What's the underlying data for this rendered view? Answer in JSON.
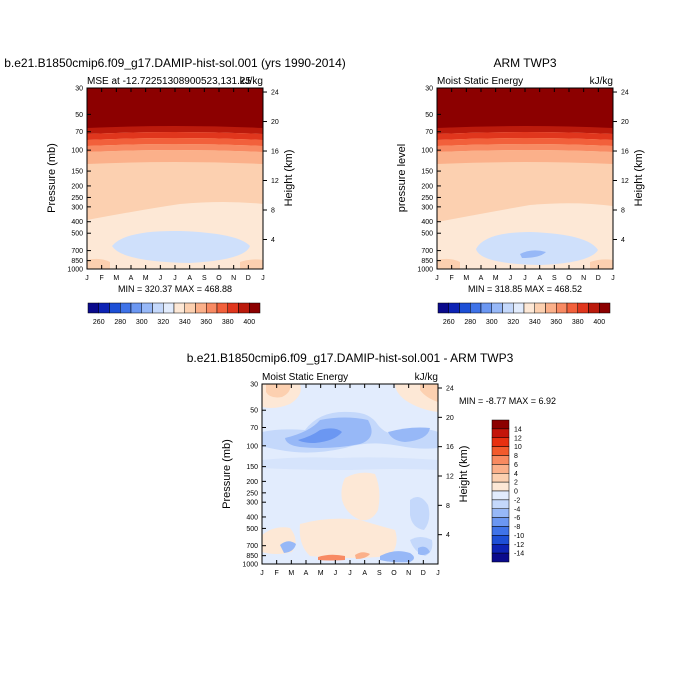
{
  "chart_data": [
    {
      "type": "heatmap",
      "title": "b.e21.B1850cmip6.f09_g17.DAMIP-hist-sol.001 (yrs 1990-2014)",
      "subtitle_left": "MSE at -12.72251308900523,131.25",
      "subtitle_right": "kJ/kg",
      "ylabel_left": "Pressure (mb)",
      "ylabel_right": "Height (km)",
      "stats": "MIN = 320.37  MAX = 468.88",
      "x_ticks": [
        "J",
        "F",
        "M",
        "A",
        "M",
        "J",
        "J",
        "A",
        "S",
        "O",
        "N",
        "D",
        "J"
      ],
      "pressure_ticks": [
        "30",
        "50",
        "70",
        "100",
        "150",
        "200",
        "250",
        "300",
        "400",
        "500",
        "700",
        "850",
        "1000"
      ],
      "height_ticks": [
        "24",
        "20",
        "16",
        "12",
        "8",
        "4"
      ],
      "min": 320.37,
      "max": 468.88
    },
    {
      "type": "heatmap",
      "title": "ARM TWP3",
      "subtitle_left": "Moist Static Energy",
      "subtitle_right": "kJ/kg",
      "ylabel_left": "pressure level",
      "ylabel_right": "Height (km)",
      "stats": "MIN = 318.85  MAX = 468.52",
      "x_ticks": [
        "J",
        "F",
        "M",
        "A",
        "M",
        "J",
        "J",
        "A",
        "S",
        "O",
        "N",
        "D",
        "J"
      ],
      "pressure_ticks": [
        "30",
        "50",
        "70",
        "100",
        "150",
        "200",
        "250",
        "300",
        "400",
        "500",
        "700",
        "850",
        "1000"
      ],
      "height_ticks": [
        "24",
        "20",
        "16",
        "12",
        "8",
        "4"
      ],
      "min": 318.85,
      "max": 468.52
    },
    {
      "type": "heatmap",
      "title": "b.e21.B1850cmip6.f09_g17.DAMIP-hist-sol.001 - ARM TWP3",
      "subtitle_left": "Moist Static Energy",
      "subtitle_right": "kJ/kg",
      "ylabel_left": "Pressure (mb)",
      "ylabel_right": "Height (km)",
      "stats": "MIN =  -8.77  MAX =   6.92",
      "x_ticks": [
        "J",
        "F",
        "M",
        "A",
        "M",
        "J",
        "J",
        "A",
        "S",
        "O",
        "N",
        "D",
        "J"
      ],
      "pressure_ticks": [
        "30",
        "50",
        "70",
        "100",
        "150",
        "200",
        "250",
        "300",
        "400",
        "500",
        "700",
        "850",
        "1000"
      ],
      "height_ticks": [
        "24",
        "20",
        "16",
        "12",
        "8",
        "4"
      ],
      "min": -8.77,
      "max": 6.92
    }
  ],
  "colorbar_top": {
    "labels": [
      "260",
      "280",
      "300",
      "320",
      "340",
      "360",
      "380",
      "400"
    ],
    "colors": [
      "#0a0a8c",
      "#0d23b5",
      "#1d4fd6",
      "#3f73e8",
      "#6b97f2",
      "#97b8f7",
      "#c4d8fb",
      "#e2ecfd",
      "#fde8d6",
      "#fcd0b0",
      "#fbb08a",
      "#f88a63",
      "#f2603b",
      "#e0361d",
      "#bb1a0c",
      "#8c0000"
    ]
  },
  "colorbar_diff": {
    "labels": [
      "14",
      "12",
      "10",
      "8",
      "6",
      "4",
      "2",
      "0",
      "-2",
      "-4",
      "-6",
      "-8",
      "-10",
      "-12",
      "-14"
    ],
    "colors": [
      "#8c0000",
      "#c4140a",
      "#e83010",
      "#f25a2c",
      "#f88a60",
      "#fbb08a",
      "#fcd0b0",
      "#fde8d6",
      "#e2ecfd",
      "#c4d8fb",
      "#97b8f7",
      "#6b97f2",
      "#3f73e8",
      "#1d4fd6",
      "#0d23b5",
      "#0a0a8c"
    ]
  },
  "colors": {
    "darkred": "#8c0000",
    "lightorange": "#fcd0b0",
    "cream": "#fde8d6",
    "lightblue": "#c9dcfb"
  }
}
